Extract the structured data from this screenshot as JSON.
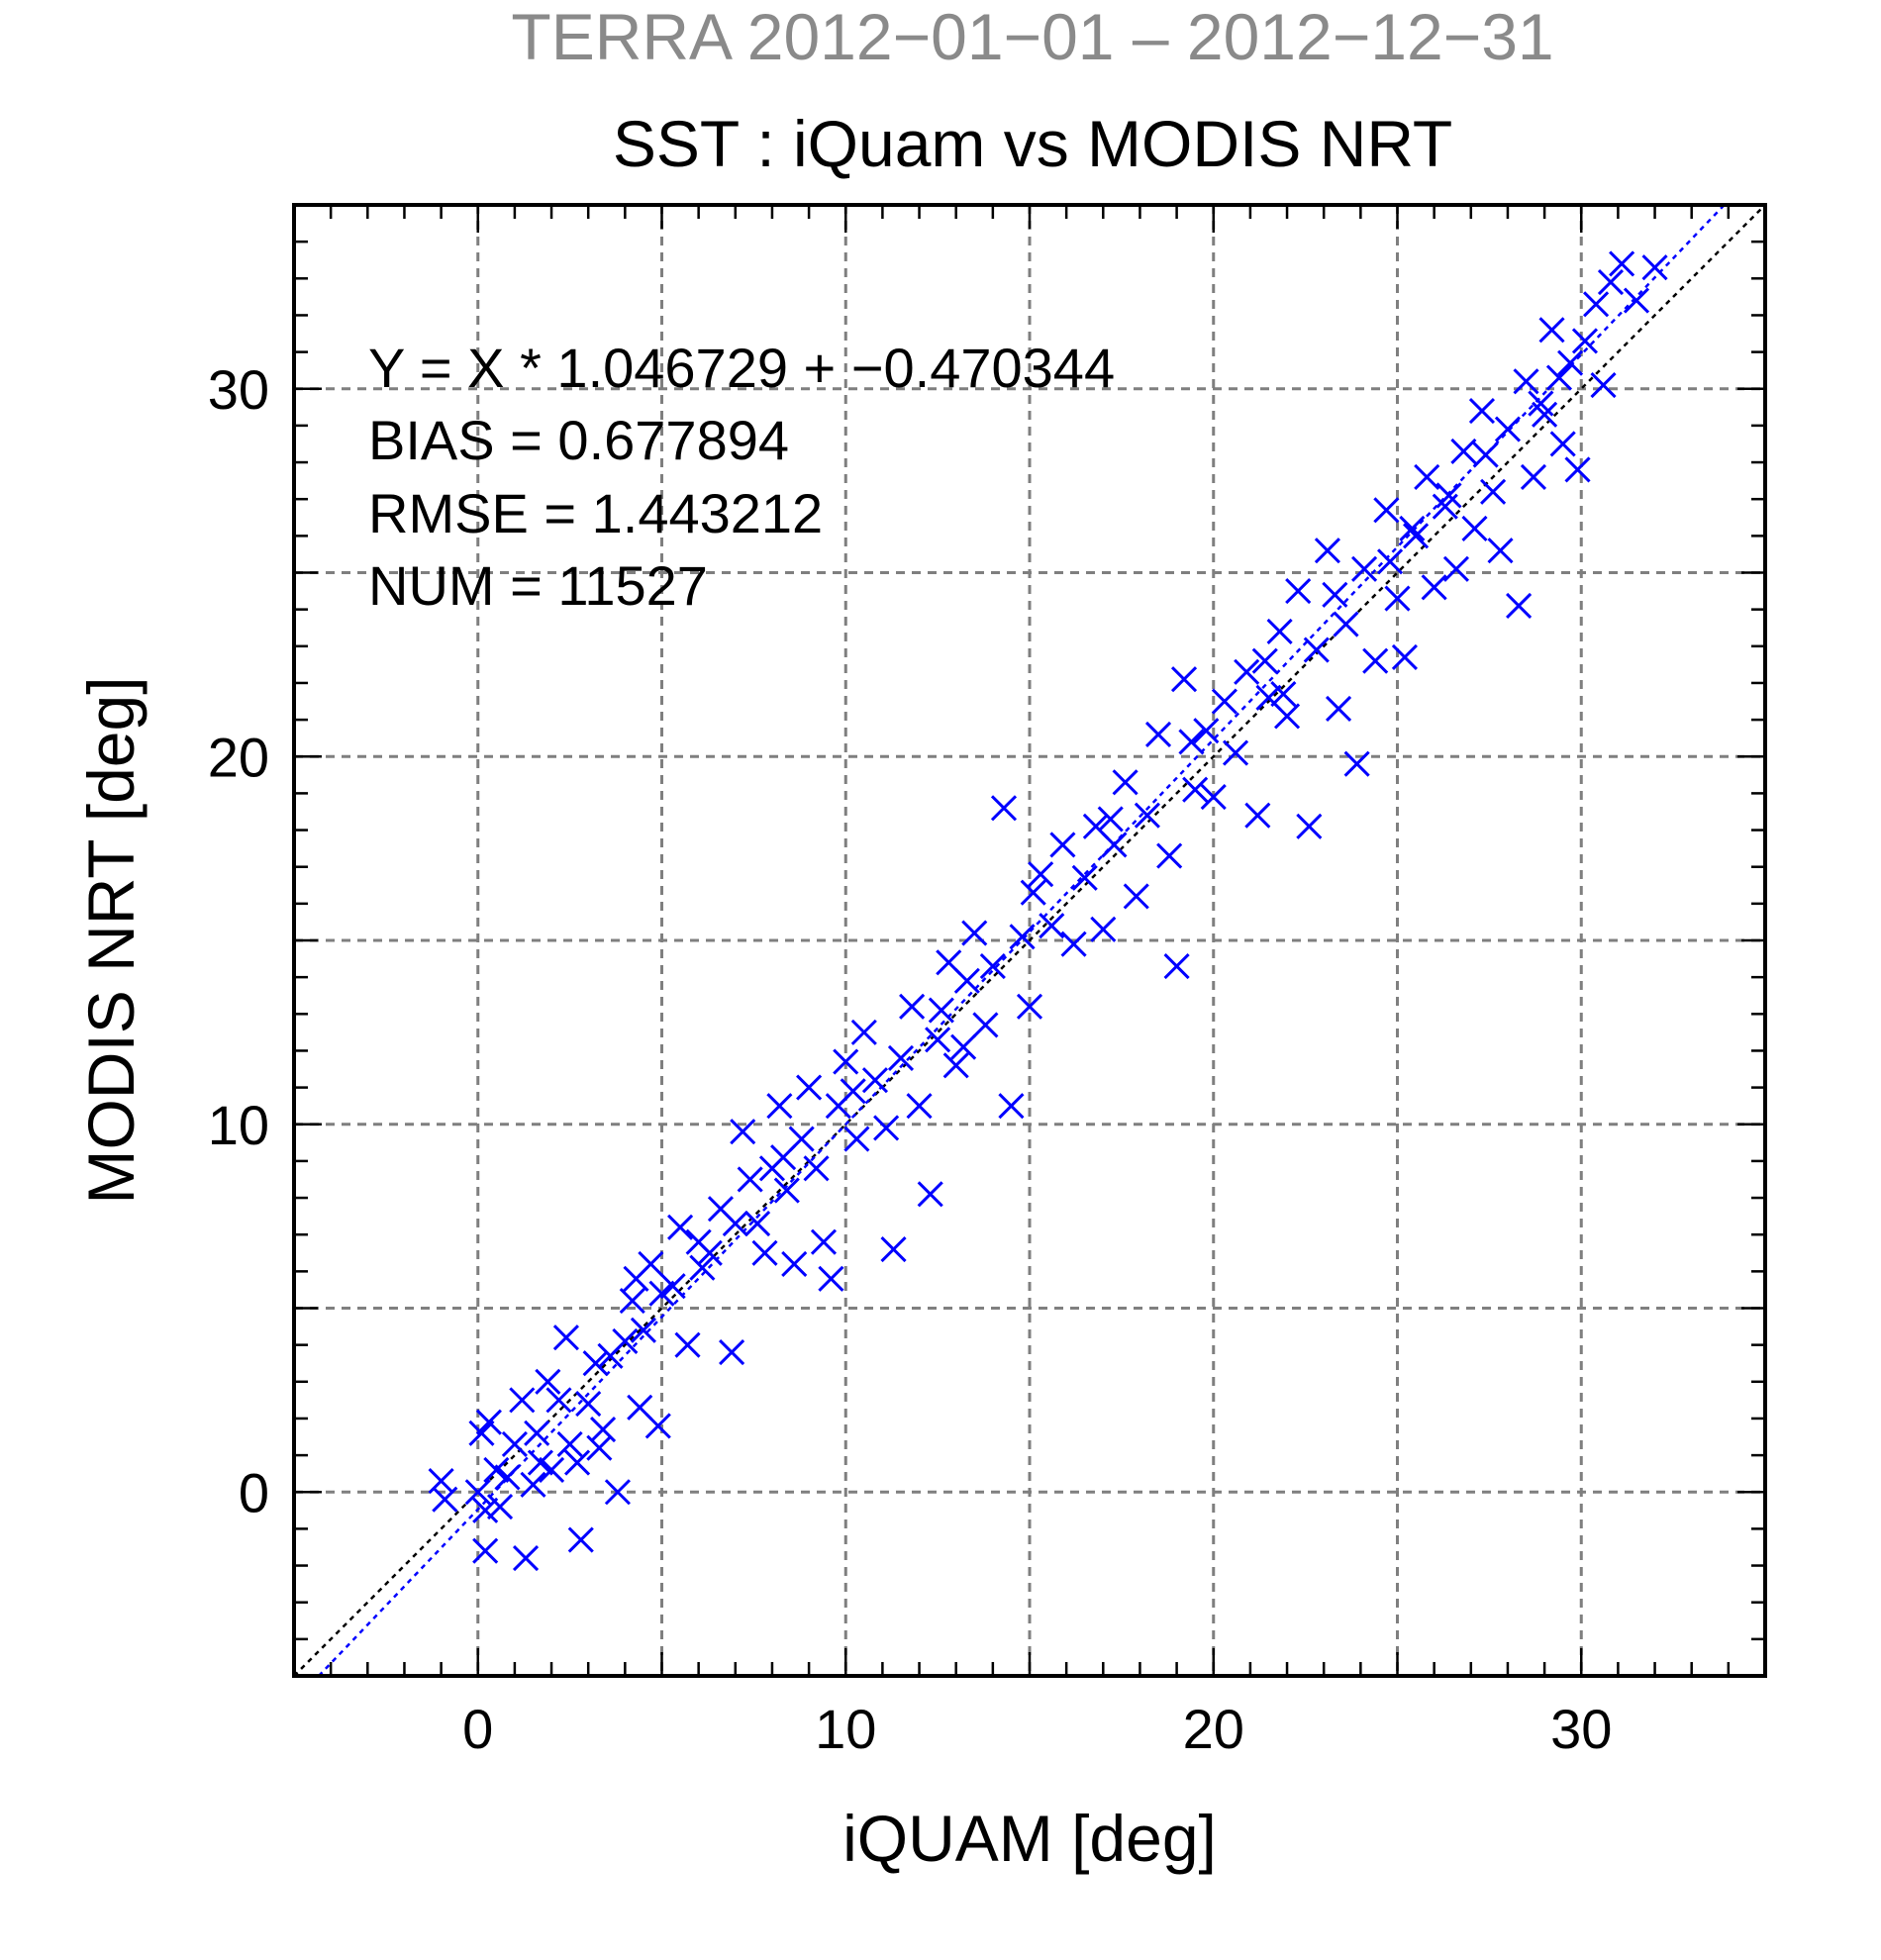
{
  "chart_data": {
    "type": "scatter",
    "supertitle": "TERRA  2012−01−01 – 2012−12−31",
    "title": "SST : iQuam vs MODIS NRT",
    "xlabel": "iQUAM [deg]",
    "ylabel": "MODIS NRT [deg]",
    "xlim": [
      -5,
      35
    ],
    "ylim": [
      -5,
      35
    ],
    "x_ticks": [
      0,
      10,
      20,
      30
    ],
    "y_ticks": [
      0,
      10,
      20,
      30
    ],
    "x_tick_labels": [
      "0",
      "10",
      "20",
      "30"
    ],
    "y_tick_labels": [
      "0",
      "10",
      "20",
      "30"
    ],
    "grid": true,
    "marker": "x",
    "marker_color": "#0000ff",
    "stats": [
      "Y = X * 1.046729 + −0.470344",
      "BIAS = 0.677894",
      "RMSE = 1.443212",
      "NUM = 11527"
    ],
    "reference_lines": [
      {
        "kind": "one-to-one",
        "slope": 1.0,
        "intercept": 0.0,
        "color": "#000000"
      },
      {
        "kind": "regression",
        "slope": 1.046729,
        "intercept": -0.470344,
        "color": "#0000ff"
      }
    ],
    "points": [
      [
        -1,
        0.3
      ],
      [
        -0.9,
        -0.2
      ],
      [
        0,
        0
      ],
      [
        0.2,
        -0.5
      ],
      [
        0.1,
        1.6
      ],
      [
        0.3,
        1.9
      ],
      [
        0.5,
        0.6
      ],
      [
        0.2,
        -1.6
      ],
      [
        0.6,
        -0.4
      ],
      [
        0.8,
        0.4
      ],
      [
        1,
        1.3
      ],
      [
        1.2,
        2.5
      ],
      [
        1.3,
        -1.8
      ],
      [
        1.5,
        0.2
      ],
      [
        1.6,
        1.6
      ],
      [
        1.9,
        3
      ],
      [
        2,
        0.6
      ],
      [
        2.2,
        2.5
      ],
      [
        2.4,
        4.2
      ],
      [
        2.5,
        1.3
      ],
      [
        2.7,
        0.8
      ],
      [
        2.8,
        -1.3
      ],
      [
        3,
        2.4
      ],
      [
        3.2,
        3.5
      ],
      [
        3.4,
        1.7
      ],
      [
        3.6,
        3.7
      ],
      [
        3.8,
        0
      ],
      [
        4,
        4.1
      ],
      [
        4.2,
        5.2
      ],
      [
        4.4,
        2.3
      ],
      [
        4.5,
        4.4
      ],
      [
        4.7,
        6.2
      ],
      [
        4.9,
        1.8
      ],
      [
        5,
        5.4
      ],
      [
        5.3,
        5.6
      ],
      [
        5.5,
        7.2
      ],
      [
        5.7,
        4
      ],
      [
        6,
        6.8
      ],
      [
        6.3,
        6.5
      ],
      [
        6.6,
        7.7
      ],
      [
        6.9,
        3.8
      ],
      [
        7,
        7.3
      ],
      [
        7.2,
        9.8
      ],
      [
        7.4,
        8.5
      ],
      [
        7.6,
        7.3
      ],
      [
        7.8,
        6.5
      ],
      [
        8,
        8.8
      ],
      [
        8.2,
        10.5
      ],
      [
        8.4,
        8.2
      ],
      [
        8.6,
        6.2
      ],
      [
        8.8,
        9.6
      ],
      [
        9,
        11
      ],
      [
        9.2,
        8.8
      ],
      [
        9.4,
        6.8
      ],
      [
        9.6,
        5.8
      ],
      [
        9.8,
        10.5
      ],
      [
        10,
        11.7
      ],
      [
        10.3,
        9.6
      ],
      [
        10.5,
        12.5
      ],
      [
        10.8,
        11.2
      ],
      [
        11.1,
        9.9
      ],
      [
        11.3,
        6.6
      ],
      [
        11.5,
        11.8
      ],
      [
        11.8,
        13.2
      ],
      [
        12,
        10.5
      ],
      [
        12.3,
        8.1
      ],
      [
        12.5,
        12.3
      ],
      [
        12.8,
        14.4
      ],
      [
        13,
        11.6
      ],
      [
        13.3,
        13.9
      ],
      [
        13.5,
        15.2
      ],
      [
        13.8,
        12.7
      ],
      [
        14,
        14.3
      ],
      [
        14.3,
        18.6
      ],
      [
        14.5,
        10.5
      ],
      [
        14.8,
        15.1
      ],
      [
        15,
        13.2
      ],
      [
        15.3,
        16.8
      ],
      [
        15.6,
        15.4
      ],
      [
        15.9,
        17.6
      ],
      [
        16.2,
        14.9
      ],
      [
        16.5,
        16.7
      ],
      [
        16.8,
        18.1
      ],
      [
        17,
        15.3
      ],
      [
        17.3,
        17.6
      ],
      [
        17.6,
        19.3
      ],
      [
        17.9,
        16.2
      ],
      [
        18.2,
        18.4
      ],
      [
        18.5,
        20.6
      ],
      [
        18.8,
        17.3
      ],
      [
        19,
        14.3
      ],
      [
        19.2,
        22.1
      ],
      [
        19.5,
        19.1
      ],
      [
        19.8,
        20.7
      ],
      [
        20,
        18.9
      ],
      [
        20.3,
        21.5
      ],
      [
        20.6,
        20.1
      ],
      [
        20.9,
        22.3
      ],
      [
        21.2,
        18.4
      ],
      [
        21.5,
        21.6
      ],
      [
        21.8,
        23.4
      ],
      [
        22,
        21.1
      ],
      [
        22.3,
        24.5
      ],
      [
        22.6,
        18.1
      ],
      [
        22.8,
        22.9
      ],
      [
        23.1,
        25.6
      ],
      [
        23.4,
        21.3
      ],
      [
        23.6,
        23.6
      ],
      [
        23.9,
        19.8
      ],
      [
        24.1,
        25.1
      ],
      [
        24.4,
        22.6
      ],
      [
        24.7,
        26.7
      ],
      [
        25,
        24.3
      ],
      [
        25.2,
        22.7
      ],
      [
        25.5,
        26
      ],
      [
        25.8,
        27.6
      ],
      [
        26,
        24.6
      ],
      [
        26.3,
        26.8
      ],
      [
        26.6,
        25.1
      ],
      [
        26.8,
        28.3
      ],
      [
        27.1,
        26.2
      ],
      [
        27.3,
        29.4
      ],
      [
        27.6,
        27.2
      ],
      [
        27.8,
        25.6
      ],
      [
        28,
        28.9
      ],
      [
        28.3,
        24.1
      ],
      [
        28.5,
        30.2
      ],
      [
        28.7,
        27.6
      ],
      [
        29,
        29.3
      ],
      [
        29.2,
        31.6
      ],
      [
        29.5,
        28.5
      ],
      [
        29.7,
        30.7
      ],
      [
        29.9,
        27.8
      ],
      [
        30.1,
        31.3
      ],
      [
        30.4,
        32.3
      ],
      [
        30.6,
        30.1
      ],
      [
        30.8,
        32.9
      ],
      [
        31.1,
        33.4
      ],
      [
        31.5,
        32.4
      ],
      [
        32,
        33.3
      ],
      [
        1.7,
        0.8
      ],
      [
        3.3,
        1.2
      ],
      [
        6.1,
        6.1
      ],
      [
        8.3,
        9.1
      ],
      [
        10.2,
        10.9
      ],
      [
        12.6,
        13.1
      ],
      [
        15.1,
        16.3
      ],
      [
        17.2,
        18.3
      ],
      [
        19.4,
        20.4
      ],
      [
        21.4,
        22.6
      ],
      [
        23.3,
        24.4
      ],
      [
        25.4,
        26.2
      ],
      [
        27.4,
        28.2
      ],
      [
        29.4,
        30.3
      ],
      [
        4.3,
        5.8
      ],
      [
        13.2,
        12.1
      ],
      [
        21.9,
        21.7
      ],
      [
        26.4,
        27.1
      ],
      [
        28.9,
        29.6
      ],
      [
        24.8,
        25.3
      ]
    ]
  }
}
